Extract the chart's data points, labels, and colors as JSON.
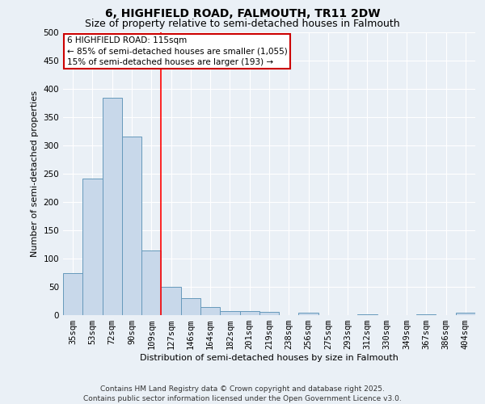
{
  "title_line1": "6, HIGHFIELD ROAD, FALMOUTH, TR11 2DW",
  "title_line2": "Size of property relative to semi-detached houses in Falmouth",
  "xlabel": "Distribution of semi-detached houses by size in Falmouth",
  "ylabel": "Number of semi-detached properties",
  "categories": [
    "35sqm",
    "53sqm",
    "72sqm",
    "90sqm",
    "109sqm",
    "127sqm",
    "146sqm",
    "164sqm",
    "182sqm",
    "201sqm",
    "219sqm",
    "238sqm",
    "256sqm",
    "275sqm",
    "293sqm",
    "312sqm",
    "330sqm",
    "349sqm",
    "367sqm",
    "386sqm",
    "404sqm"
  ],
  "values": [
    75,
    242,
    385,
    315,
    115,
    50,
    30,
    14,
    7,
    7,
    6,
    0,
    5,
    0,
    0,
    2,
    0,
    0,
    1,
    0,
    4
  ],
  "bar_color": "#c8d8ea",
  "bar_edge_color": "#6699bb",
  "red_line_x": 4.5,
  "annotation_title": "6 HIGHFIELD ROAD: 115sqm",
  "annotation_line1": "← 85% of semi-detached houses are smaller (1,055)",
  "annotation_line2": "15% of semi-detached houses are larger (193) →",
  "annotation_box_color": "#ffffff",
  "annotation_box_edge_color": "#cc0000",
  "ylim": [
    0,
    500
  ],
  "yticks": [
    0,
    50,
    100,
    150,
    200,
    250,
    300,
    350,
    400,
    450,
    500
  ],
  "footnote_line1": "Contains HM Land Registry data © Crown copyright and database right 2025.",
  "footnote_line2": "Contains public sector information licensed under the Open Government Licence v3.0.",
  "bg_color": "#eaf0f6",
  "grid_color": "#ffffff",
  "title_fontsize": 10,
  "subtitle_fontsize": 9,
  "axis_fontsize": 8,
  "tick_fontsize": 7.5,
  "annot_fontsize": 7.5,
  "footnote_fontsize": 6.5
}
